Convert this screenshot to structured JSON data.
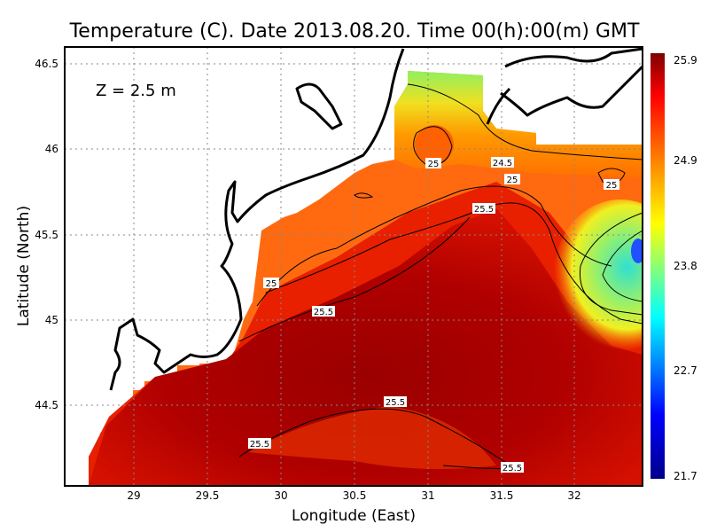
{
  "title": "Temperature (C). Date 2013.08.20. Time 00(h):00(m) GMT",
  "depth_label": "Z = 2.5 m",
  "xlabel": "Longitude (East)",
  "ylabel": "Latitude (North)",
  "chart_data": {
    "type": "heatmap",
    "xlim": [
      28.53,
      32.46
    ],
    "ylim": [
      44.03,
      46.6
    ],
    "xticks": [
      "29",
      "29.5",
      "30",
      "30.5",
      "31",
      "31.5",
      "32"
    ],
    "yticks": [
      "44.5",
      "45",
      "45.5",
      "46",
      "46.5"
    ],
    "grid": true,
    "colorbar": {
      "ticks": [
        "21.7",
        "22.7",
        "23.8",
        "24.9",
        "25.9"
      ],
      "range": [
        21.7,
        25.9
      ],
      "colors": [
        "#00008b",
        "#0000ff",
        "#00ffff",
        "#ffff00",
        "#ff7f00",
        "#ff0000",
        "#800000"
      ],
      "placement": "right"
    },
    "contour_labels": [
      {
        "text": "25",
        "lon": 31.03,
        "lat": 45.9
      },
      {
        "text": "24.5",
        "lon": 31.52,
        "lat": 45.91
      },
      {
        "text": "25",
        "lon": 31.58,
        "lat": 45.81
      },
      {
        "text": "25",
        "lon": 32.25,
        "lat": 45.78
      },
      {
        "text": "25.5",
        "lon": 31.4,
        "lat": 45.65
      },
      {
        "text": "25",
        "lon": 29.95,
        "lat": 45.21
      },
      {
        "text": "25.5",
        "lon": 30.15,
        "lat": 45.05
      },
      {
        "text": "25.5",
        "lon": 30.88,
        "lat": 44.53
      },
      {
        "text": "25.5",
        "lon": 29.83,
        "lat": 44.28
      },
      {
        "text": "25.5",
        "lon": 31.6,
        "lat": 44.17
      }
    ]
  }
}
